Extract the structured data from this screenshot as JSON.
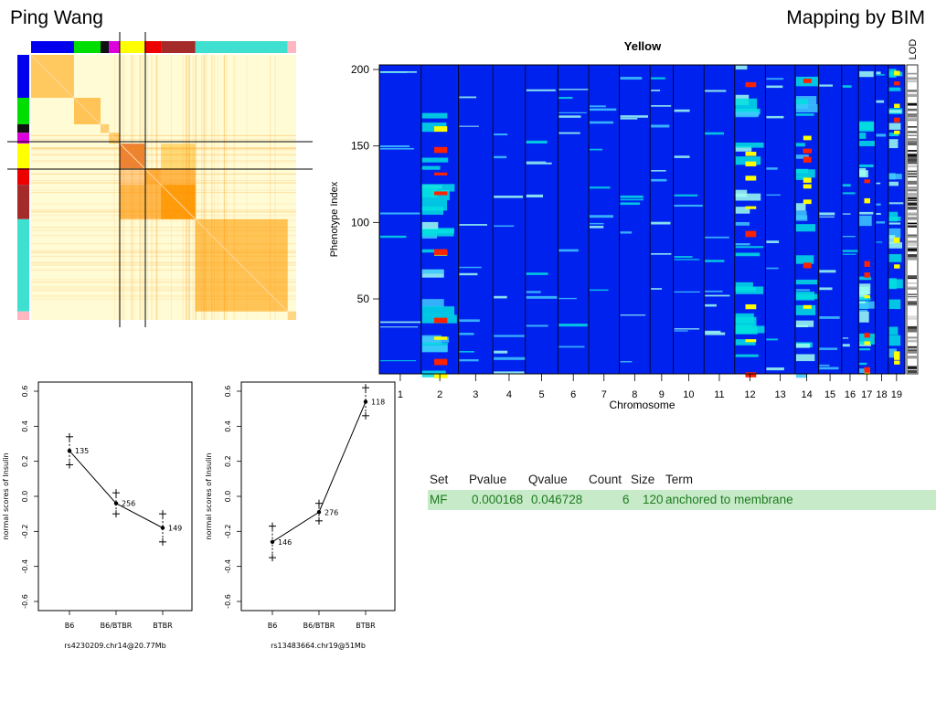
{
  "slide": {
    "author": "Ping Wang",
    "heading": "Mapping by BIM"
  },
  "colors": {
    "module_bar": [
      "#0000ee",
      "#00dd00",
      "#111111",
      "#dd00dd",
      "#ffff00",
      "#ee0000",
      "#a52a2a",
      "#40e0d0",
      "#ffb6c1"
    ],
    "heat_low": "#0022ee",
    "heat_mid": "#00e0e0",
    "heat_high": "#ff2200",
    "corr_bg": "#fffbd5",
    "corr_high": "#ee2200",
    "table_highlight": "#c7ebc9"
  },
  "correlation_matrix": {
    "module_blocks": [
      "blue",
      "green",
      "black",
      "magenta",
      "yellow",
      "red",
      "brown",
      "turquoise",
      "pink"
    ]
  },
  "chart_data": [
    {
      "type": "heatmap",
      "title": "Yellow",
      "xlabel": "Chromosome",
      "ylabel": "Phenotype Index",
      "colorbar_label": "LOD",
      "x": [
        "1",
        "2",
        "3",
        "4",
        "5",
        "6",
        "7",
        "8",
        "9",
        "10",
        "11",
        "12",
        "13",
        "14",
        "15",
        "16",
        "17",
        "18",
        "19"
      ],
      "ylim": [
        1,
        203
      ],
      "yticks": [
        "50",
        "100",
        "150",
        "200"
      ],
      "strong_signal_chromosomes": [
        "2",
        "12",
        "14",
        "17",
        "19"
      ]
    },
    {
      "type": "line",
      "xlabel": "rs4230209.chr14@20.77Mb",
      "ylabel": "normal scores of Insulin",
      "categories": [
        "B6",
        "B6/BTBR",
        "BTBR"
      ],
      "ylim": [
        -0.6,
        0.6
      ],
      "yticks": [
        "0.6",
        "0.4",
        "0.2",
        "0.0",
        "-0.2",
        "-0.4",
        "-0.6"
      ],
      "series": [
        {
          "mean": [
            0.26,
            -0.04,
            -0.18
          ],
          "upper": [
            0.34,
            0.02,
            -0.1
          ],
          "lower": [
            0.18,
            -0.1,
            -0.26
          ]
        }
      ],
      "counts": [
        "135",
        "256",
        "149"
      ]
    },
    {
      "type": "line",
      "xlabel": "rs13483664.chr19@51Mb",
      "ylabel": "normal scores of Insulin",
      "categories": [
        "B6",
        "B6/BTBR",
        "BTBR"
      ],
      "ylim": [
        -0.6,
        0.6
      ],
      "yticks": [
        "0.6",
        "0.4",
        "0.2",
        "0.0",
        "-0.2",
        "-0.4",
        "-0.6"
      ],
      "series": [
        {
          "mean": [
            -0.26,
            -0.09,
            0.54
          ],
          "upper": [
            -0.17,
            -0.04,
            0.62
          ],
          "lower": [
            -0.35,
            -0.14,
            0.46
          ]
        }
      ],
      "counts": [
        "146",
        "276",
        "118"
      ]
    }
  ],
  "enrichment_table": {
    "headers": {
      "set": "Set",
      "pvalue": "Pvalue",
      "qvalue": "Qvalue",
      "count": "Count",
      "size": "Size",
      "term": "Term"
    },
    "rows": [
      {
        "set": "MF",
        "pvalue": "0.000168",
        "qvalue": "0.046728",
        "count": "6",
        "size": "120",
        "term": "anchored to membrane"
      }
    ]
  }
}
